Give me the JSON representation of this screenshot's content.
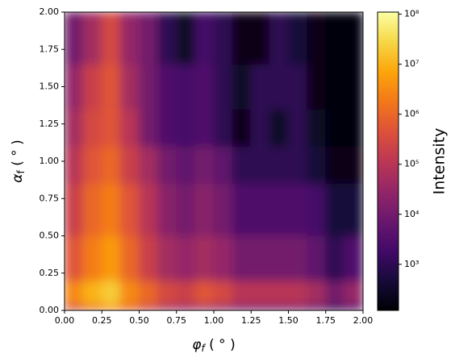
{
  "chart_data": {
    "type": "heatmap",
    "colormap": "inferno",
    "color_scale": "log",
    "xlabel": {
      "symbol": "φ",
      "subscript": "f",
      "unit": " ( ° )"
    },
    "ylabel": {
      "symbol": "α",
      "subscript": "f",
      "unit": " ( ° )"
    },
    "colorbar_label": "Intensity",
    "xlim": [
      0,
      2
    ],
    "ylim": [
      0,
      2
    ],
    "xticks": [
      {
        "value": 0,
        "label": "0.00"
      },
      {
        "value": 0.25,
        "label": "0.25"
      },
      {
        "value": 0.5,
        "label": "0.50"
      },
      {
        "value": 0.75,
        "label": "0.75"
      },
      {
        "value": 1,
        "label": "1.00"
      },
      {
        "value": 1.25,
        "label": "1.25"
      },
      {
        "value": 1.5,
        "label": "1.50"
      },
      {
        "value": 1.75,
        "label": "1.75"
      },
      {
        "value": 2,
        "label": "2.00"
      }
    ],
    "yticks": [
      {
        "value": 0,
        "label": "0.00"
      },
      {
        "value": 0.25,
        "label": "0.25"
      },
      {
        "value": 0.5,
        "label": "0.50"
      },
      {
        "value": 0.75,
        "label": "0.75"
      },
      {
        "value": 1,
        "label": "1.00"
      },
      {
        "value": 1.25,
        "label": "1.25"
      },
      {
        "value": 1.5,
        "label": "1.50"
      },
      {
        "value": 1.75,
        "label": "1.75"
      },
      {
        "value": 2,
        "label": "2.00"
      }
    ],
    "clim": [
      120,
      110000000
    ],
    "cticks": [
      {
        "value": 1000,
        "label": "10³"
      },
      {
        "value": 10000,
        "label": "10⁴"
      },
      {
        "value": 100000,
        "label": "10⁵"
      },
      {
        "value": 1000000,
        "label": "10⁶"
      },
      {
        "value": 10000000,
        "label": "10⁷"
      },
      {
        "value": 100000000,
        "label": "10⁸"
      }
    ],
    "x_edges": [
      0,
      0.125,
      0.25,
      0.375,
      0.5,
      0.625,
      0.75,
      0.875,
      1,
      1.125,
      1.25,
      1.375,
      1.5,
      1.625,
      1.75,
      1.875,
      2
    ],
    "y_edges": [
      0,
      0.04,
      0.2,
      0.5,
      0.85,
      1.1,
      1.35,
      1.65,
      2
    ],
    "values": [
      [
        300000.0,
        1000000.0,
        3000000.0,
        1000000.0,
        200000.0,
        50000.0,
        30000.0,
        30000.0,
        20000.0,
        10000.0,
        10000.0,
        10000.0,
        10000.0,
        5000.0,
        1000.0,
        3000.0
      ],
      [
        3000000.0,
        10000000.0,
        20000000.0,
        3000000.0,
        1000000.0,
        300000.0,
        200000.0,
        500000.0,
        300000.0,
        100000.0,
        100000.0,
        100000.0,
        100000.0,
        50000.0,
        10000.0,
        30000.0
      ],
      [
        500000.0,
        2000000.0,
        5000000.0,
        1000000.0,
        200000.0,
        50000.0,
        30000.0,
        50000.0,
        30000.0,
        10000.0,
        10000.0,
        10000.0,
        10000.0,
        5000.0,
        1000.0,
        3000.0
      ],
      [
        200000.0,
        1000000.0,
        2000000.0,
        500000.0,
        100000.0,
        20000.0,
        10000.0,
        20000.0,
        10000.0,
        3000.0,
        3000.0,
        3000.0,
        3000.0,
        2000.0,
        500.0,
        500.0
      ],
      [
        100000.0,
        500000.0,
        1000000.0,
        200000.0,
        50000.0,
        10000.0,
        5000.0,
        10000.0,
        5000.0,
        1000.0,
        1000.0,
        1000.0,
        1000.0,
        500.0,
        200.0,
        200.0
      ],
      [
        50000.0,
        300000.0,
        500000.0,
        100000.0,
        10000.0,
        3000.0,
        2000.0,
        3000.0,
        1000.0,
        200.0,
        1000.0,
        300.0,
        1000.0,
        300.0,
        150.0,
        150.0
      ],
      [
        30000.0,
        200000.0,
        500000.0,
        50000.0,
        10000.0,
        3000.0,
        2000.0,
        3000.0,
        1000.0,
        300.0,
        1000.0,
        1000.0,
        1000.0,
        200.0,
        150.0,
        150.0
      ],
      [
        10000.0,
        50000.0,
        300000.0,
        30000.0,
        10000.0,
        1000.0,
        300.0,
        2000.0,
        1000.0,
        200.0,
        200.0,
        1000.0,
        500.0,
        200.0,
        150.0,
        150.0
      ]
    ]
  }
}
